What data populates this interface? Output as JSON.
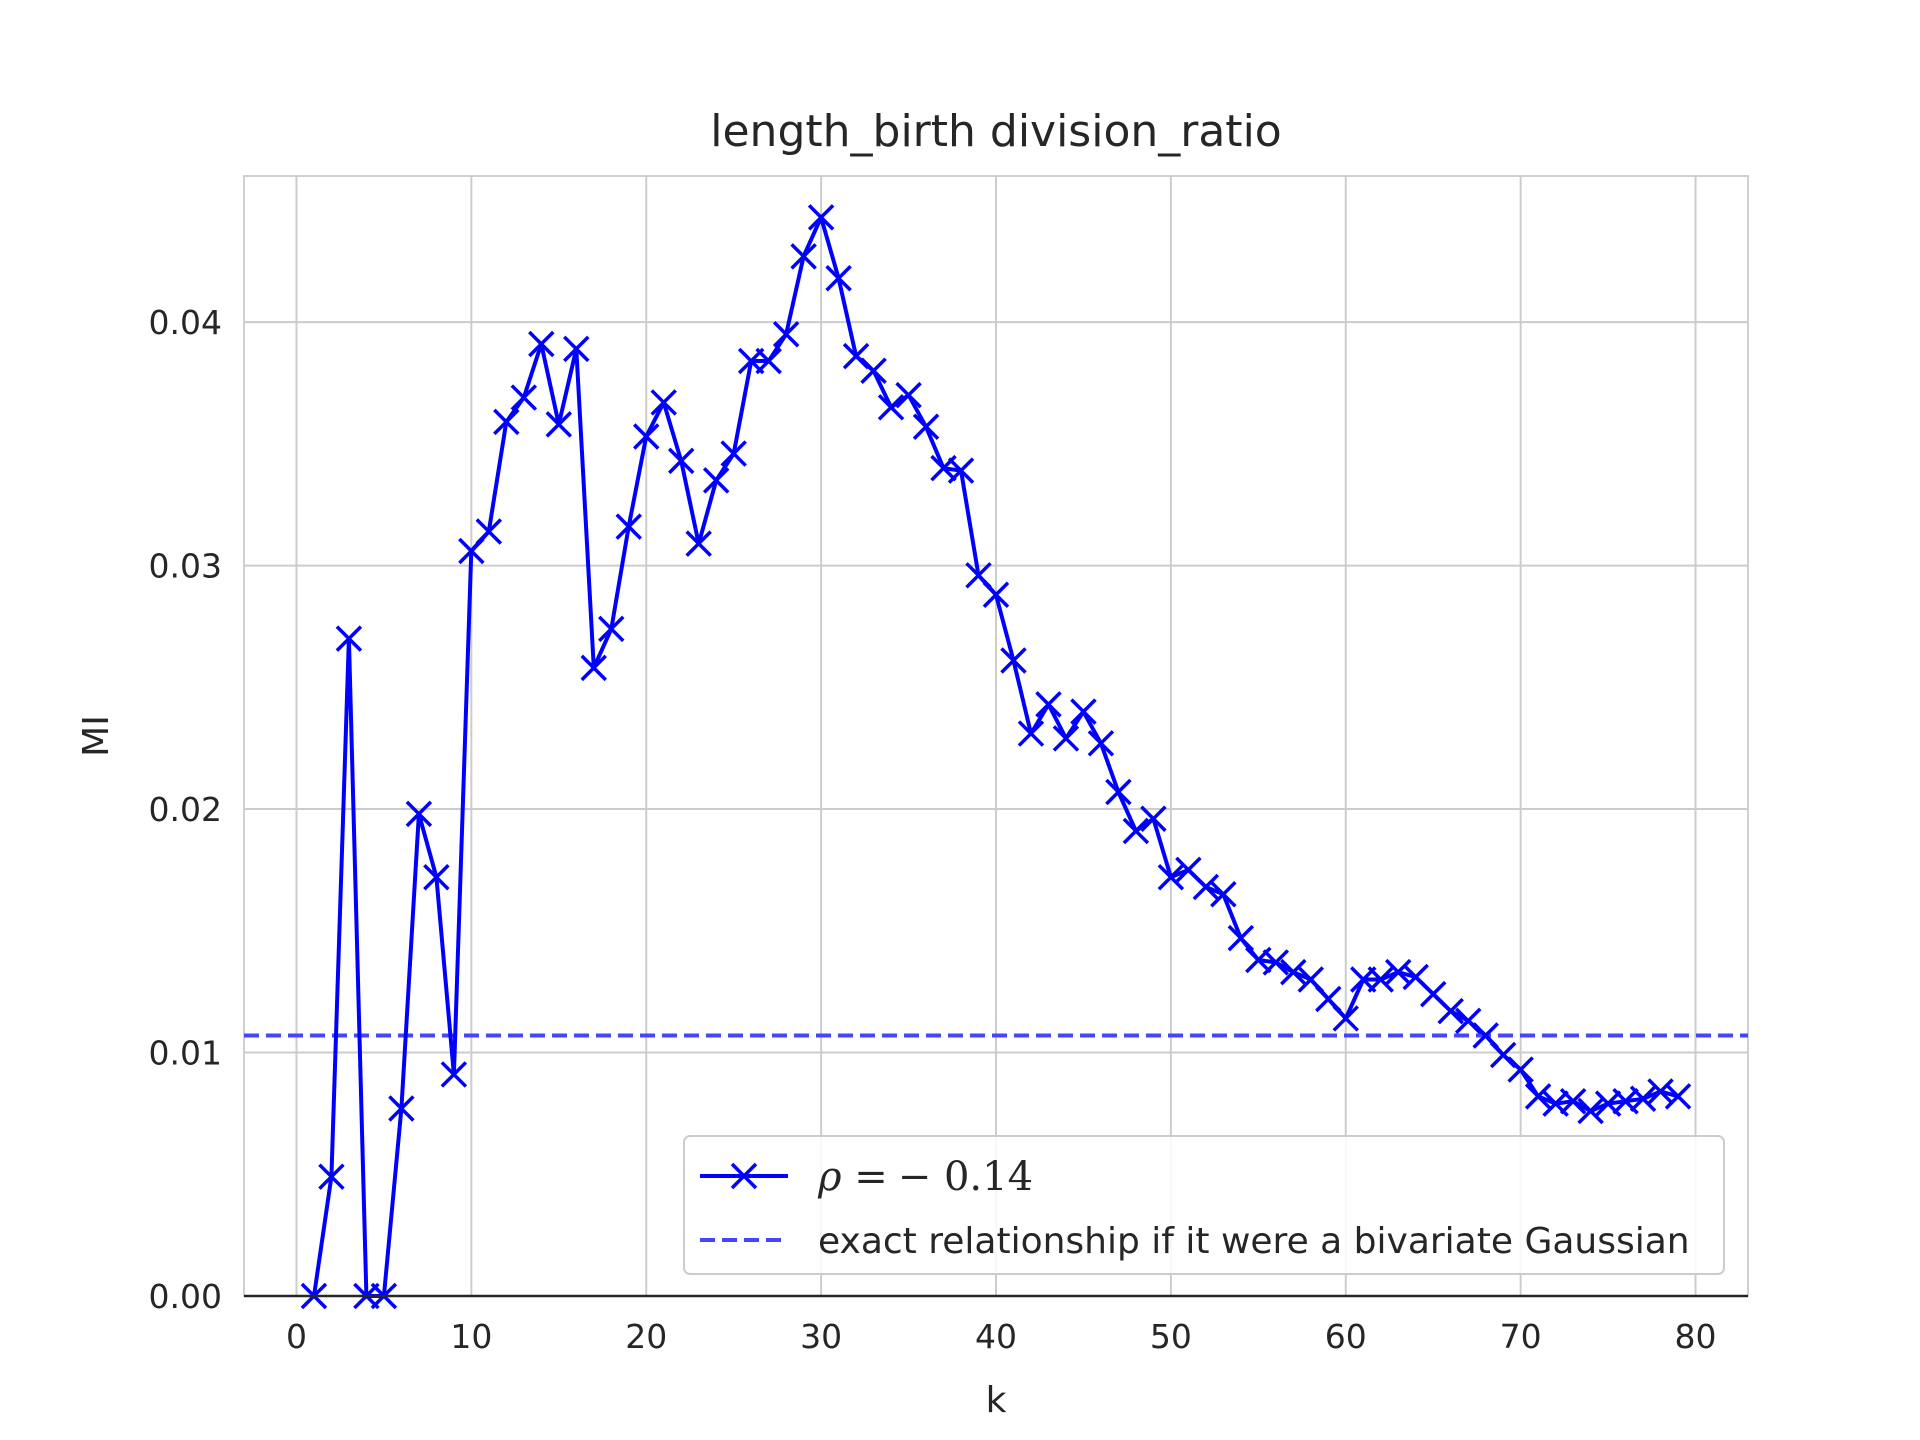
{
  "chart_data": {
    "type": "line",
    "title": "length_birth division_ratio",
    "xlabel": "k",
    "ylabel": "MI",
    "xlim": [
      -3,
      83
    ],
    "ylim": [
      0,
      0.046
    ],
    "xticks": [
      0,
      10,
      20,
      30,
      40,
      50,
      60,
      70,
      80
    ],
    "yticks": [
      0.0,
      0.01,
      0.02,
      0.03,
      0.04
    ],
    "ytick_labels": [
      "0.00",
      "0.01",
      "0.02",
      "0.03",
      "0.04"
    ],
    "xtick_labels": [
      "0",
      "10",
      "20",
      "30",
      "40",
      "50",
      "60",
      "70",
      "80"
    ],
    "grid": true,
    "legend_position": "lower-right",
    "series": [
      {
        "name": "ρ = − 0.14",
        "name_prefix": "ρ =",
        "name_value": "− 0.14",
        "color": "#0000ff",
        "style": "solid",
        "marker": "x",
        "x": [
          1,
          2,
          3,
          4,
          5,
          6,
          7,
          8,
          9,
          10,
          11,
          12,
          13,
          14,
          15,
          16,
          17,
          18,
          19,
          20,
          21,
          22,
          23,
          24,
          25,
          26,
          27,
          28,
          29,
          30,
          31,
          32,
          33,
          34,
          35,
          36,
          37,
          38,
          39,
          40,
          41,
          42,
          43,
          44,
          45,
          46,
          47,
          48,
          49,
          50,
          51,
          52,
          53,
          54,
          55,
          56,
          57,
          58,
          59,
          60,
          61,
          62,
          63,
          64,
          65,
          66,
          67,
          68,
          69,
          70,
          71,
          72,
          73,
          74,
          75,
          76,
          77,
          78,
          79
        ],
        "y": [
          0.0,
          0.0049,
          0.027,
          0.0,
          0.0,
          0.0077,
          0.0198,
          0.0172,
          0.0091,
          0.0306,
          0.0314,
          0.0359,
          0.0369,
          0.0391,
          0.0358,
          0.0389,
          0.0258,
          0.0274,
          0.0316,
          0.0353,
          0.0367,
          0.0343,
          0.0309,
          0.0335,
          0.0346,
          0.0384,
          0.0384,
          0.0395,
          0.0427,
          0.0443,
          0.0418,
          0.0386,
          0.038,
          0.0365,
          0.037,
          0.0357,
          0.034,
          0.0339,
          0.0296,
          0.0288,
          0.0261,
          0.0231,
          0.0243,
          0.0229,
          0.024,
          0.0227,
          0.0207,
          0.0191,
          0.0196,
          0.0172,
          0.0175,
          0.0168,
          0.0165,
          0.0147,
          0.0138,
          0.0137,
          0.0133,
          0.013,
          0.0122,
          0.0114,
          0.013,
          0.013,
          0.0133,
          0.0131,
          0.0124,
          0.0117,
          0.0113,
          0.0107,
          0.0099,
          0.0093,
          0.0082,
          0.0079,
          0.008,
          0.0076,
          0.0079,
          0.008,
          0.0081,
          0.0084,
          0.0082
        ]
      },
      {
        "name": "exact relationship if it were a bivariate Gaussian",
        "color": "#4545ff",
        "style": "dashed",
        "y_constant": 0.0107
      }
    ]
  }
}
